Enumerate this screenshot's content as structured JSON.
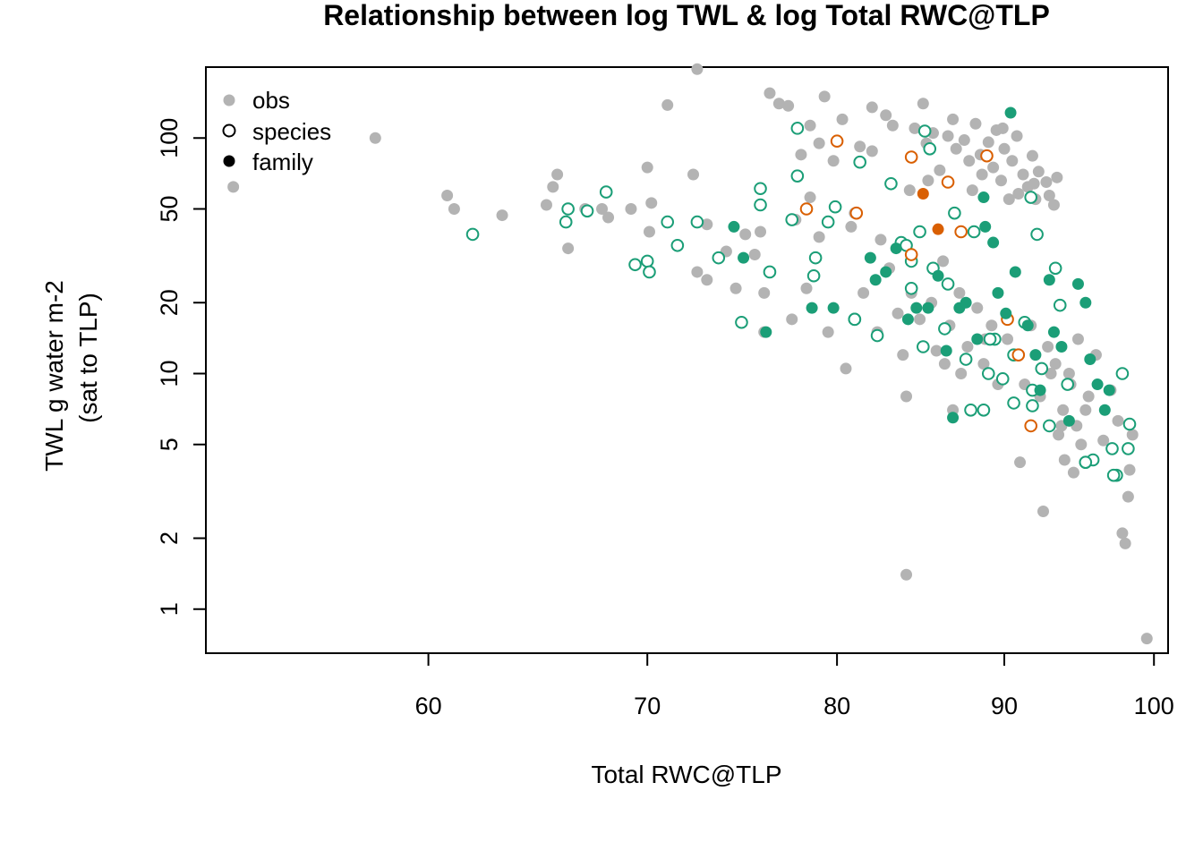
{
  "chart_data": {
    "type": "scatter",
    "title": "Relationship between log TWL & log Total RWC@TLP",
    "xlabel": "Total RWC@TLP",
    "ylabel_line1": "TWL g water m-2",
    "ylabel_line2": "(sat to TLP)",
    "x_scale": "log",
    "y_scale": "log",
    "xlim": [
      51.3,
      101.0
    ],
    "ylim": [
      0.65,
      200
    ],
    "x_ticks": [
      60,
      70,
      80,
      90,
      100
    ],
    "y_ticks": [
      1,
      2,
      5,
      10,
      20,
      50,
      100
    ],
    "grid": false,
    "legend": {
      "position": "top-left",
      "items": [
        {
          "label": "obs",
          "marker": "filled",
          "color": "#b3b3b3"
        },
        {
          "label": "species",
          "marker": "open",
          "color": "#000000"
        },
        {
          "label": "family",
          "marker": "filled",
          "color": "#000000"
        }
      ]
    },
    "colors": {
      "obs": "#b3b3b3",
      "green": "#1b9e77",
      "orange": "#d95f02"
    },
    "series": [
      {
        "name": "obs",
        "marker": "filled",
        "color": "#b3b3b3",
        "points": [
          [
            52.3,
            62
          ],
          [
            57.8,
            100
          ],
          [
            60.8,
            57
          ],
          [
            61.1,
            50
          ],
          [
            63.2,
            47
          ],
          [
            65.2,
            52
          ],
          [
            65.5,
            62
          ],
          [
            65.7,
            70
          ],
          [
            66.2,
            34
          ],
          [
            67.0,
            50
          ],
          [
            67.8,
            50
          ],
          [
            68.1,
            46
          ],
          [
            69.2,
            50
          ],
          [
            70.0,
            75
          ],
          [
            70.1,
            40
          ],
          [
            70.2,
            53
          ],
          [
            71.0,
            138
          ],
          [
            72.3,
            70
          ],
          [
            72.5,
            196
          ],
          [
            72.5,
            27
          ],
          [
            73.0,
            43
          ],
          [
            73.0,
            25
          ],
          [
            74.0,
            33
          ],
          [
            74.5,
            23
          ],
          [
            75.0,
            39
          ],
          [
            75.5,
            32
          ],
          [
            75.8,
            40
          ],
          [
            76.0,
            22
          ],
          [
            76.0,
            15
          ],
          [
            76.3,
            155
          ],
          [
            76.8,
            140
          ],
          [
            77.3,
            137
          ],
          [
            77.5,
            17
          ],
          [
            77.7,
            45
          ],
          [
            78.0,
            85
          ],
          [
            78.3,
            23
          ],
          [
            78.5,
            56
          ],
          [
            78.5,
            113
          ],
          [
            79.0,
            38
          ],
          [
            79.0,
            95
          ],
          [
            79.3,
            150
          ],
          [
            79.5,
            15
          ],
          [
            79.8,
            80
          ],
          [
            80.3,
            120
          ],
          [
            80.5,
            10.5
          ],
          [
            80.8,
            42
          ],
          [
            81.0,
            48
          ],
          [
            81.3,
            92
          ],
          [
            81.5,
            22
          ],
          [
            82.0,
            135
          ],
          [
            82.0,
            88
          ],
          [
            82.5,
            37
          ],
          [
            82.8,
            125
          ],
          [
            83.2,
            113
          ],
          [
            83.5,
            18
          ],
          [
            84.0,
            1.4
          ],
          [
            84.0,
            8
          ],
          [
            84.2,
            60
          ],
          [
            84.3,
            22
          ],
          [
            84.5,
            110
          ],
          [
            85.0,
            140
          ],
          [
            85.3,
            66
          ],
          [
            85.6,
            105
          ],
          [
            85.8,
            12.5
          ],
          [
            86.0,
            73
          ],
          [
            86.3,
            11
          ],
          [
            86.5,
            102
          ],
          [
            86.8,
            7
          ],
          [
            87.0,
            90
          ],
          [
            87.3,
            10
          ],
          [
            87.5,
            98
          ],
          [
            87.8,
            80
          ],
          [
            88.0,
            60
          ],
          [
            88.2,
            115
          ],
          [
            88.5,
            85
          ],
          [
            88.8,
            14
          ],
          [
            89.0,
            96
          ],
          [
            89.3,
            75
          ],
          [
            89.5,
            108
          ],
          [
            89.8,
            66
          ],
          [
            90.0,
            90
          ],
          [
            90.3,
            55
          ],
          [
            90.5,
            80
          ],
          [
            90.8,
            102
          ],
          [
            91.0,
            4.2
          ],
          [
            91.2,
            70
          ],
          [
            91.5,
            62
          ],
          [
            91.8,
            84
          ],
          [
            92.0,
            55
          ],
          [
            92.2,
            72
          ],
          [
            92.5,
            2.6
          ],
          [
            92.7,
            65
          ],
          [
            93.0,
            10
          ],
          [
            93.2,
            52
          ],
          [
            93.5,
            5.5
          ],
          [
            93.7,
            6
          ],
          [
            93.9,
            4.3
          ],
          [
            94.2,
            10
          ],
          [
            94.5,
            3.8
          ],
          [
            94.8,
            14
          ],
          [
            95.0,
            5
          ],
          [
            95.5,
            8
          ],
          [
            96.0,
            12
          ],
          [
            96.5,
            5.2
          ],
          [
            97.0,
            8.5
          ],
          [
            97.5,
            6.3
          ],
          [
            97.8,
            2.1
          ],
          [
            98.0,
            1.9
          ],
          [
            98.2,
            3.0
          ],
          [
            98.3,
            3.9
          ],
          [
            98.5,
            5.5
          ],
          [
            99.5,
            0.75
          ],
          [
            82.3,
            15
          ],
          [
            83.0,
            28
          ],
          [
            83.8,
            12
          ],
          [
            84.8,
            17
          ],
          [
            85.5,
            20
          ],
          [
            86.2,
            30
          ],
          [
            86.6,
            16
          ],
          [
            87.2,
            22
          ],
          [
            87.7,
            13
          ],
          [
            88.3,
            19
          ],
          [
            88.7,
            11
          ],
          [
            89.2,
            16
          ],
          [
            89.6,
            9
          ],
          [
            90.2,
            14
          ],
          [
            90.6,
            12
          ],
          [
            91.3,
            9
          ],
          [
            91.7,
            16
          ],
          [
            92.3,
            8
          ],
          [
            92.8,
            13
          ],
          [
            93.3,
            11
          ],
          [
            93.8,
            7
          ],
          [
            94.3,
            9
          ],
          [
            94.7,
            6
          ],
          [
            95.3,
            7
          ],
          [
            85.2,
            95
          ],
          [
            86.8,
            120
          ],
          [
            88.6,
            70
          ],
          [
            89.9,
            110
          ],
          [
            90.9,
            58
          ],
          [
            91.9,
            64
          ],
          [
            92.9,
            57
          ],
          [
            93.4,
            68
          ]
        ]
      },
      {
        "name": "species",
        "marker": "open",
        "color": "#1b9e77",
        "points": [
          [
            61.9,
            39
          ],
          [
            66.2,
            50
          ],
          [
            66.1,
            44
          ],
          [
            67.1,
            49
          ],
          [
            68.0,
            59
          ],
          [
            69.4,
            29
          ],
          [
            70.0,
            30
          ],
          [
            70.1,
            27
          ],
          [
            71.0,
            44
          ],
          [
            71.5,
            35
          ],
          [
            72.5,
            44
          ],
          [
            74.8,
            16.5
          ],
          [
            75.8,
            52
          ],
          [
            76.3,
            27
          ],
          [
            77.8,
            110
          ],
          [
            77.8,
            69
          ],
          [
            78.7,
            26
          ],
          [
            79.5,
            44
          ],
          [
            79.9,
            51
          ],
          [
            81.0,
            17
          ],
          [
            81.3,
            79
          ],
          [
            82.3,
            14.5
          ],
          [
            83.1,
            64
          ],
          [
            83.7,
            36
          ],
          [
            84.0,
            35
          ],
          [
            84.3,
            30
          ],
          [
            85.0,
            13
          ],
          [
            85.1,
            107
          ],
          [
            85.4,
            90
          ],
          [
            86.3,
            15.5
          ],
          [
            86.5,
            24
          ],
          [
            86.9,
            48
          ],
          [
            87.6,
            11.5
          ],
          [
            88.1,
            40
          ],
          [
            88.7,
            7
          ],
          [
            89.0,
            10
          ],
          [
            89.4,
            14
          ],
          [
            89.9,
            9.5
          ],
          [
            90.6,
            7.5
          ],
          [
            91.3,
            16.5
          ],
          [
            91.8,
            7.3
          ],
          [
            92.4,
            10.5
          ],
          [
            92.9,
            6
          ],
          [
            93.3,
            28
          ],
          [
            93.6,
            19.5
          ],
          [
            94.1,
            9
          ],
          [
            95.3,
            4.2
          ],
          [
            95.8,
            4.3
          ],
          [
            97.1,
            4.8
          ],
          [
            97.4,
            3.7
          ],
          [
            97.8,
            10
          ],
          [
            98.2,
            4.8
          ],
          [
            98.3,
            6.1
          ],
          [
            92.1,
            39
          ],
          [
            91.7,
            56
          ]
        ]
      },
      {
        "name": "species",
        "marker": "open",
        "color": "#ffffff-edge-black",
        "points": [
          [
            73.6,
            31
          ],
          [
            75.8,
            61
          ],
          [
            77.5,
            45
          ],
          [
            78.8,
            31
          ],
          [
            81.0,
            17
          ],
          [
            84.3,
            23
          ],
          [
            84.8,
            40
          ],
          [
            85.6,
            28
          ],
          [
            87.9,
            7
          ],
          [
            89.1,
            14
          ],
          [
            90.6,
            12
          ],
          [
            91.8,
            8.5
          ],
          [
            95.3,
            4.2
          ],
          [
            97.2,
            3.7
          ]
        ]
      },
      {
        "name": "species",
        "marker": "open",
        "color": "#d95f02",
        "points": [
          [
            78.3,
            50
          ],
          [
            80.0,
            97
          ],
          [
            81.1,
            48
          ],
          [
            84.3,
            83
          ],
          [
            84.3,
            32
          ],
          [
            86.5,
            65
          ],
          [
            87.3,
            40
          ],
          [
            88.9,
            84
          ],
          [
            90.2,
            17
          ],
          [
            90.9,
            12
          ],
          [
            91.7,
            6
          ]
        ]
      },
      {
        "name": "family",
        "marker": "filled",
        "color": "#1b9e77",
        "points": [
          [
            74.4,
            42
          ],
          [
            74.9,
            31
          ],
          [
            76.1,
            15
          ],
          [
            78.6,
            19
          ],
          [
            79.8,
            19
          ],
          [
            81.9,
            31
          ],
          [
            82.2,
            25
          ],
          [
            82.8,
            27
          ],
          [
            83.4,
            34
          ],
          [
            84.1,
            17
          ],
          [
            84.6,
            19
          ],
          [
            85.3,
            19
          ],
          [
            85.9,
            26
          ],
          [
            86.4,
            12.5
          ],
          [
            86.8,
            6.5
          ],
          [
            87.2,
            19
          ],
          [
            87.6,
            20
          ],
          [
            88.3,
            14
          ],
          [
            88.7,
            56
          ],
          [
            88.8,
            42
          ],
          [
            89.3,
            36
          ],
          [
            89.6,
            22
          ],
          [
            90.1,
            18
          ],
          [
            90.4,
            128
          ],
          [
            90.7,
            27
          ],
          [
            91.5,
            16
          ],
          [
            92.0,
            12
          ],
          [
            92.3,
            8.5
          ],
          [
            92.9,
            25
          ],
          [
            93.2,
            15
          ],
          [
            93.7,
            13
          ],
          [
            94.2,
            6.3
          ],
          [
            94.8,
            24
          ],
          [
            95.3,
            20
          ],
          [
            95.6,
            11.5
          ],
          [
            96.1,
            9
          ],
          [
            96.6,
            7
          ],
          [
            96.9,
            8.5
          ]
        ]
      },
      {
        "name": "family",
        "marker": "filled",
        "color": "#d95f02",
        "points": [
          [
            85.0,
            58
          ],
          [
            85.9,
            41
          ]
        ]
      }
    ]
  }
}
